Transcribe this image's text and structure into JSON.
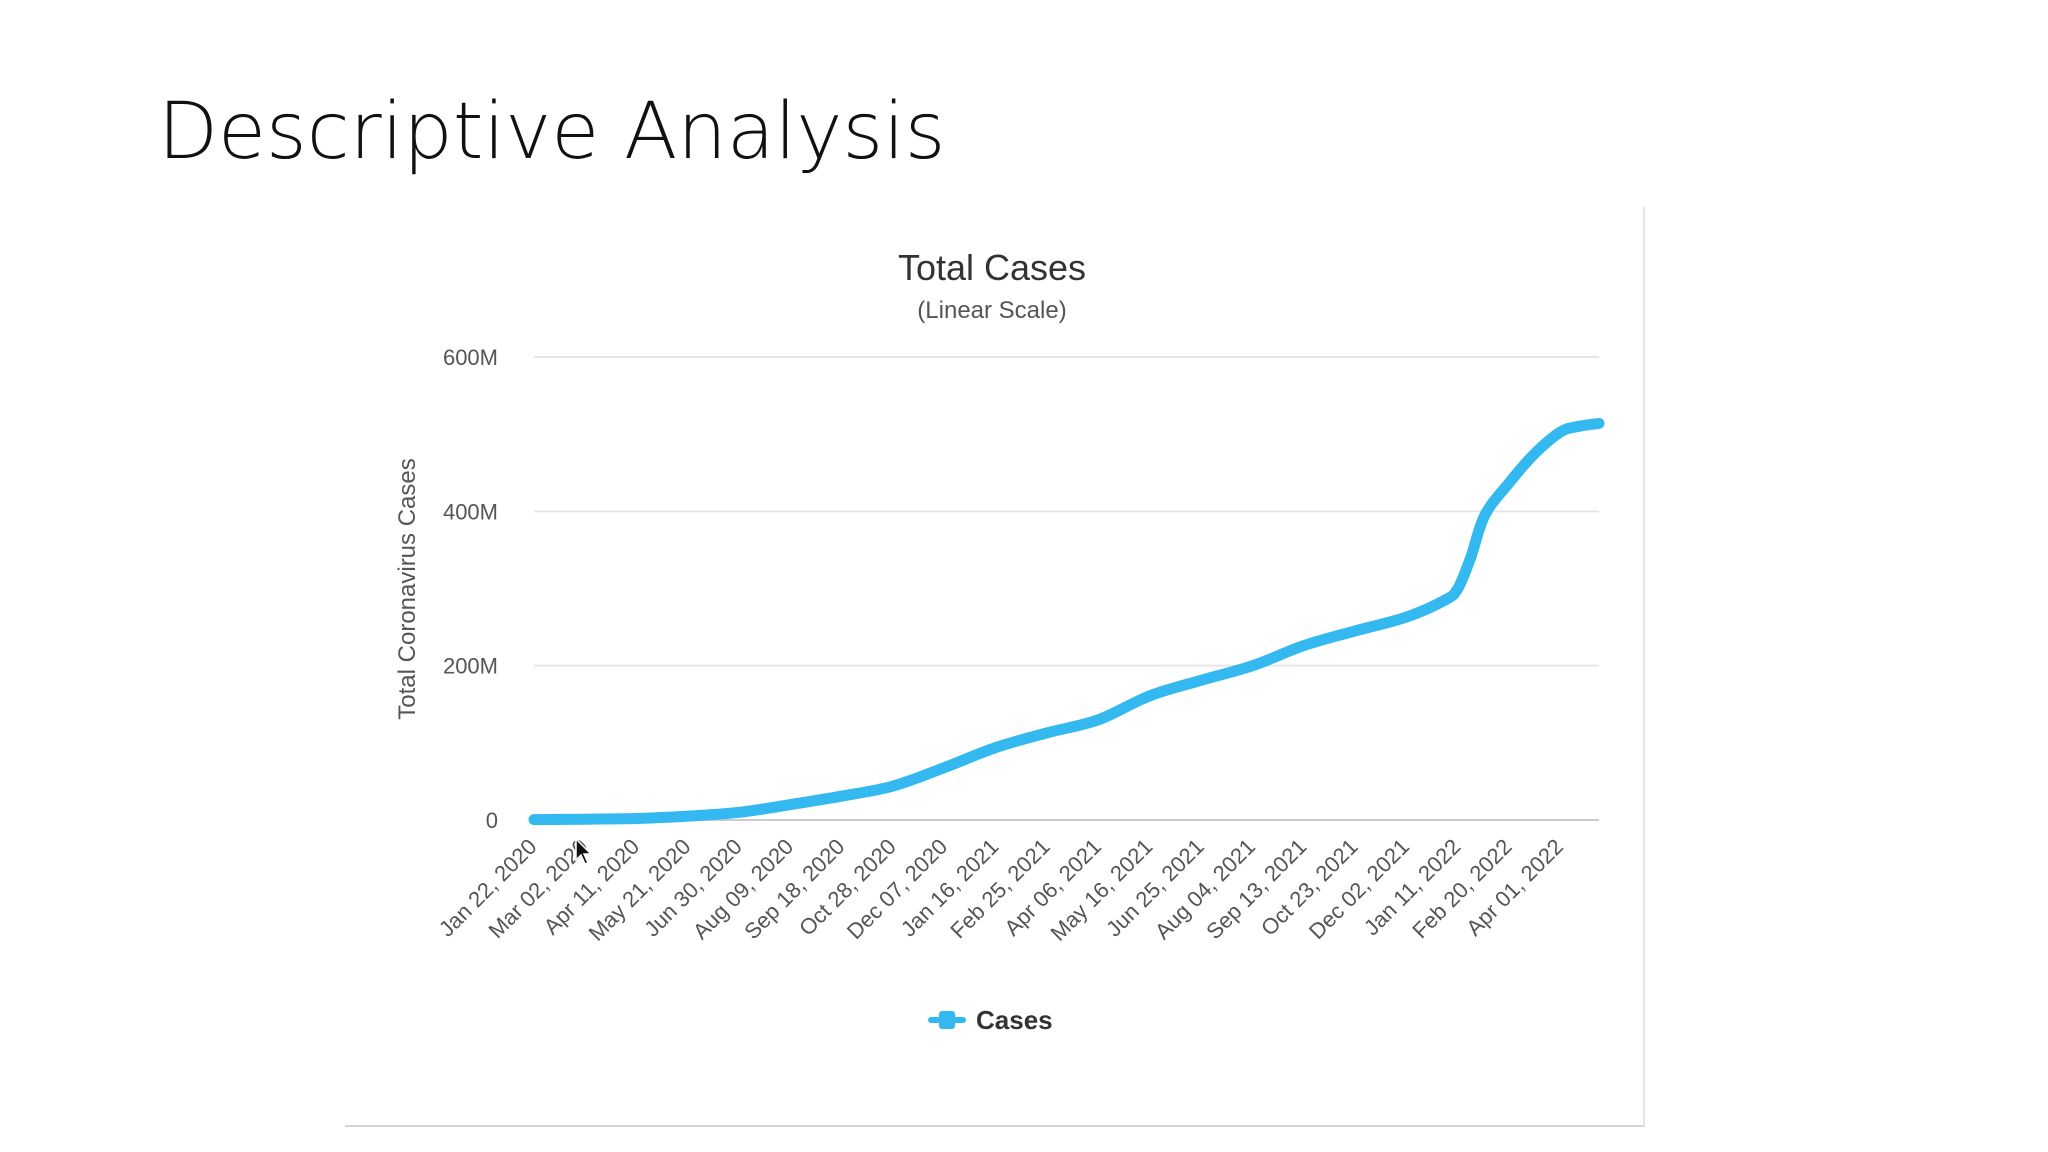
{
  "slide": {
    "title": "Descriptive Analysis"
  },
  "colors": {
    "series": "#33b9f0",
    "grid": "#e6e6e6",
    "text": "#555555",
    "title": "#333333"
  },
  "chart_data": {
    "type": "line",
    "title": "Total Cases",
    "subtitle": "(Linear Scale)",
    "ylabel": "Total Coronavirus Cases",
    "xlabel": "",
    "ylim": [
      0,
      600000000
    ],
    "yticks": [
      {
        "value": 0,
        "label": "0"
      },
      {
        "value": 200000000,
        "label": "200M"
      },
      {
        "value": 400000000,
        "label": "400M"
      },
      {
        "value": 600000000,
        "label": "600M"
      }
    ],
    "x_start": "2020-01-22",
    "x_end": "2022-05-01",
    "categories": [
      "Jan 22, 2020",
      "Mar 02, 2020",
      "Apr 11, 2020",
      "May 21, 2020",
      "Jun 30, 2020",
      "Aug 09, 2020",
      "Sep 18, 2020",
      "Oct 28, 2020",
      "Dec 07, 2020",
      "Jan 16, 2021",
      "Feb 25, 2021",
      "Apr 06, 2021",
      "May 16, 2021",
      "Jun 25, 2021",
      "Aug 04, 2021",
      "Sep 13, 2021",
      "Oct 23, 2021",
      "Dec 02, 2021",
      "Jan 11, 2022",
      "Feb 20, 2022",
      "Apr 01, 2022"
    ],
    "grid": true,
    "legend": "bottom-center",
    "series": [
      {
        "name": "Cases",
        "x": [
          "2020-01-22",
          "2020-03-02",
          "2020-04-11",
          "2020-05-21",
          "2020-06-30",
          "2020-08-09",
          "2020-09-18",
          "2020-10-28",
          "2020-12-07",
          "2021-01-16",
          "2021-02-25",
          "2021-04-06",
          "2021-05-16",
          "2021-06-25",
          "2021-08-04",
          "2021-09-13",
          "2021-10-23",
          "2021-12-02",
          "2022-01-01",
          "2022-01-11",
          "2022-01-21",
          "2022-02-01",
          "2022-02-20",
          "2022-03-12",
          "2022-04-01",
          "2022-04-15",
          "2022-05-01"
        ],
        "values": [
          500000,
          1000000,
          2000000,
          5000000,
          10000000,
          20000000,
          31000000,
          44000000,
          68000000,
          94000000,
          113000000,
          130000000,
          161000000,
          181000000,
          200000000,
          226000000,
          245000000,
          263000000,
          285000000,
          300000000,
          340000000,
          395000000,
          437000000,
          475000000,
          503000000,
          510000000,
          514000000
        ]
      }
    ]
  }
}
